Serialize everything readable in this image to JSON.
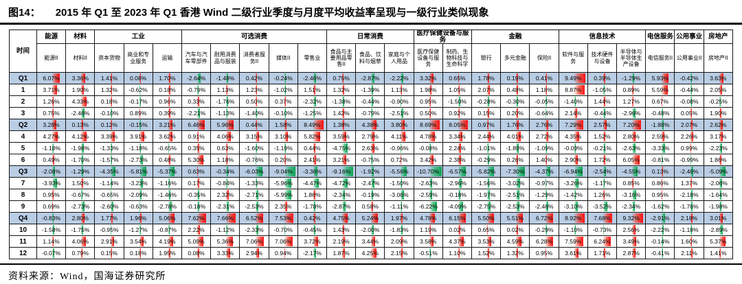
{
  "title": {
    "prefix": "图14：",
    "text": "2015 年 Q1 至 2023 年 Q1 香港 Wind 二级行业季度与月度平均收益率呈现与一级行业类似现象"
  },
  "footer": {
    "source": "资料来源：Wind，国海证券研究所"
  },
  "colors": {
    "positive_bar": "#ff0000",
    "negative_bar": "#00a848",
    "quarter_row_bg": "#b9cde4",
    "border": "#141414"
  },
  "chart_data": {
    "type": "table",
    "title": "2015 年 Q1 至 2023 年 Q1 香港 Wind 二级行业季度与月度平均收益率呈现与一级行业类似现象",
    "unit": "%",
    "time_header": "时间",
    "groups": [
      {
        "label": "能源",
        "span": 1
      },
      {
        "label": "材料",
        "span": 1
      },
      {
        "label": "工业",
        "span": 3
      },
      {
        "label": "可选消费",
        "span": 5
      },
      {
        "label": "日常消费",
        "span": 3
      },
      {
        "label": "医疗保健设备与服务",
        "span": 2
      },
      {
        "label": "金融",
        "span": 3
      },
      {
        "label": "信息技术",
        "span": 3
      },
      {
        "label": "电信服务",
        "span": 1
      },
      {
        "label": "公用事业",
        "span": 1
      },
      {
        "label": "房地产",
        "span": 1
      }
    ],
    "columns": [
      "能源II",
      "材料II",
      "资本货物",
      "商业和专业服务",
      "运输",
      "汽车与汽车零部件",
      "耐用消费品与服装",
      "消费者服务II",
      "媒体II",
      "零售业",
      "食品与主要用品零售II",
      "食品、饮料与烟草",
      "家庭与个人用品",
      "医疗保健设备与服务",
      "制药、生物科技与生命科学",
      "银行",
      "多元金融",
      "保险II",
      "软件与服务",
      "技术硬件与设备",
      "半导体与半导体生产设备",
      "电信服务II",
      "公用事业II",
      "房地产II"
    ],
    "rows": [
      {
        "label": "Q1",
        "quarter": true,
        "values": [
          6.07,
          3.36,
          1.41,
          0.08,
          1.7,
          -2.64,
          -1.48,
          0.42,
          -0.24,
          -2.46,
          0.75,
          -2.87,
          -2.22,
          3.32,
          0.65,
          1.78,
          0.19,
          0.41,
          9.49,
          0.39,
          -1.29,
          5.93,
          -0.42,
          3.63
        ]
      },
      {
        "label": "1",
        "quarter": false,
        "values": [
          3.71,
          1.9,
          1.32,
          -0.62,
          0.18,
          -0.79,
          1.13,
          1.23,
          -1.02,
          1.51,
          1.32,
          -1.39,
          1.13,
          1.98,
          1.05,
          2.07,
          0.48,
          1.18,
          8.87,
          -1.05,
          0.89,
          5.59,
          -0.44,
          2.05
        ]
      },
      {
        "label": "2",
        "quarter": false,
        "values": [
          1.26,
          4.33,
          0.18,
          -0.17,
          0.96,
          0.33,
          -1.76,
          0.5,
          0.37,
          -2.32,
          -1.38,
          -0.44,
          -0.9,
          0.95,
          -1.5,
          -0.28,
          -0.3,
          -0.05,
          -1.4,
          1.44,
          1.27,
          0.67,
          -0.08,
          -0.25
        ]
      },
      {
        "label": "3",
        "quarter": false,
        "values": [
          0.75,
          -2.46,
          -0.1,
          0.89,
          0.39,
          -2.21,
          -1.13,
          -1.4,
          -0.1,
          -1.25,
          1.42,
          -0.79,
          -2.51,
          0.5,
          0.92,
          0.15,
          0.2,
          -0.64,
          2.14,
          -0.44,
          -2.96,
          -0.48,
          0.05,
          1.9
        ]
      },
      {
        "label": "Q2",
        "quarter": true,
        "values": [
          3.28,
          0.13,
          0.12,
          -0.15,
          3.21,
          6.46,
          5.96,
          0.44,
          1.58,
          8.49,
          1.38,
          4.38,
          3.8,
          8.69,
          8.05,
          0.97,
          1.76,
          2.76,
          7.29,
          2.57,
          7.2,
          -1.88,
          2.07,
          2.62
        ]
      },
      {
        "label": "4",
        "quarter": false,
        "values": [
          4.27,
          4.12,
          3.39,
          3.91,
          3.62,
          0.91,
          4.06,
          3.15,
          3.1,
          5.82,
          3.59,
          2.79,
          4.11,
          4.78,
          3.34,
          2.44,
          4.01,
          2.72,
          4.35,
          1.52,
          2.8,
          2.59,
          2.26,
          3.17
        ]
      },
      {
        "label": "5",
        "quarter": false,
        "values": [
          -1.18,
          -1.98,
          -1.33,
          -1.18,
          -0.65,
          0.35,
          0.63,
          -1.6,
          -1.19,
          0.44,
          -4.75,
          2.63,
          -0.96,
          -0.08,
          2.24,
          -1.01,
          -1.89,
          -1.09,
          -0.09,
          -0.21,
          -2.63,
          -3.33,
          0.99,
          -2.23
        ]
      },
      {
        "label": "6",
        "quarter": false,
        "values": [
          0.49,
          -1.7,
          -1.57,
          -2.73,
          0.48,
          5.3,
          1.18,
          -0.76,
          0.2,
          2.41,
          3.21,
          -0.75,
          0.72,
          3.42,
          2.38,
          -0.29,
          0.26,
          1.4,
          2.9,
          1.72,
          6.05,
          -0.81,
          -0.99,
          1.86
        ]
      },
      {
        "label": "Q3",
        "quarter": true,
        "values": [
          -2.08,
          -1.29,
          -4.35,
          -5.81,
          -5.37,
          0.63,
          -0.34,
          -6.03,
          -9.04,
          -3.36,
          -9.16,
          -1.92,
          -5.56,
          -10.7,
          -6.57,
          -5.82,
          -7.3,
          -4.37,
          -6.94,
          -2.54,
          -4.55,
          0.13,
          -2.46,
          -5.09
        ]
      },
      {
        "label": "7",
        "quarter": false,
        "values": [
          -3.93,
          1.5,
          -1.14,
          -3.23,
          -1.16,
          0.17,
          -0.84,
          -1.33,
          -5.96,
          -4.47,
          -4.72,
          -2.47,
          -1.5,
          -2.63,
          -2.96,
          -1.56,
          -3.02,
          -0.97,
          -3.26,
          -1.17,
          0.85,
          0.86,
          1.37,
          -2.06
        ]
      },
      {
        "label": "8",
        "quarter": false,
        "values": [
          0.95,
          -0.67,
          -0.65,
          -2.09,
          -1.46,
          -0.35,
          2.32,
          -2.71,
          -5.99,
          1.86,
          -2.34,
          -0.19,
          -3.06,
          -2.59,
          -0.18,
          -1.97,
          -2.51,
          -1.29,
          -1.42,
          1.26,
          -3.16,
          0.95,
          -2.18,
          -1.64
        ]
      },
      {
        "label": "9",
        "quarter": false,
        "values": [
          0.69,
          -2.73,
          -2.6,
          -0.63,
          -2.78,
          -0.18,
          -2.31,
          -2.53,
          2.35,
          -1.78,
          -2.87,
          0.58,
          -1.11,
          -6.22,
          -4.09,
          -2.75,
          -2.53,
          -2.46,
          -3.1,
          -3.52,
          -2.34,
          -1.62,
          -1.76,
          -1.98
        ]
      },
      {
        "label": "Q4",
        "quarter": true,
        "values": [
          -0.83,
          2.8,
          1.77,
          1.96,
          5.06,
          7.62,
          7.66,
          6.52,
          7.53,
          0.42,
          4.75,
          5.24,
          1.97,
          4.78,
          6.15,
          5.5,
          5.51,
          6.72,
          8.92,
          7.68,
          9.32,
          -2.91,
          2.18,
          3.01
        ]
      },
      {
        "label": "10",
        "quarter": false,
        "values": [
          -1.58,
          -1.75,
          -0.95,
          -1.27,
          -0.87,
          2.22,
          -1.12,
          -2.33,
          -0.7,
          -0.45,
          1.43,
          -2.0,
          -1.83,
          1.19,
          0.02,
          0.65,
          0.02,
          -0.29,
          -1.1,
          -0.73,
          2.56,
          -2.22,
          -1.18,
          -2.89
        ]
      },
      {
        "label": "11",
        "quarter": false,
        "values": [
          1.14,
          4.06,
          2.91,
          3.54,
          4.19,
          5.09,
          5.36,
          7.06,
          7.06,
          3.72,
          2.19,
          3.44,
          2.09,
          3.58,
          4.37,
          3.53,
          4.59,
          6.28,
          7.59,
          6.24,
          3.49,
          -0.14,
          1.6,
          5.37
        ]
      },
      {
        "label": "12",
        "quarter": false,
        "values": [
          -0.07,
          0.79,
          0.15,
          0.18,
          1.95,
          0.08,
          3.33,
          2.94,
          0.94,
          -2.17,
          1.87,
          4.25,
          2.15,
          -0.51,
          1.1,
          1.52,
          1.32,
          0.95,
          3.61,
          1.71,
          2.87,
          -0.41,
          2.11,
          1.41
        ]
      }
    ]
  }
}
